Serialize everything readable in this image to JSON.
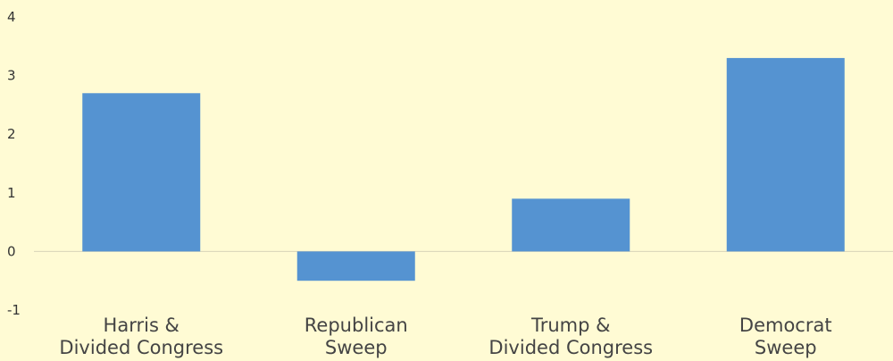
{
  "colors": {
    "background": "#FFFBD4",
    "bar": "#5593D1",
    "zero_line": "#D8D4B8",
    "tick_text": "#333333",
    "category_text": "#444444"
  },
  "chart_data": {
    "type": "bar",
    "categories": [
      [
        "Harris &",
        "Divided Congress"
      ],
      [
        "Republican",
        "Sweep"
      ],
      [
        "Trump &",
        "Divided Congress"
      ],
      [
        "Democrat",
        "Sweep"
      ]
    ],
    "values": [
      2.7,
      -0.5,
      0.9,
      3.3
    ],
    "yticks": [
      -1,
      0,
      1,
      2,
      3,
      4
    ],
    "ylim": [
      -1,
      4
    ],
    "title": "",
    "xlabel": "",
    "ylabel": "",
    "grid": false,
    "legend": false
  }
}
